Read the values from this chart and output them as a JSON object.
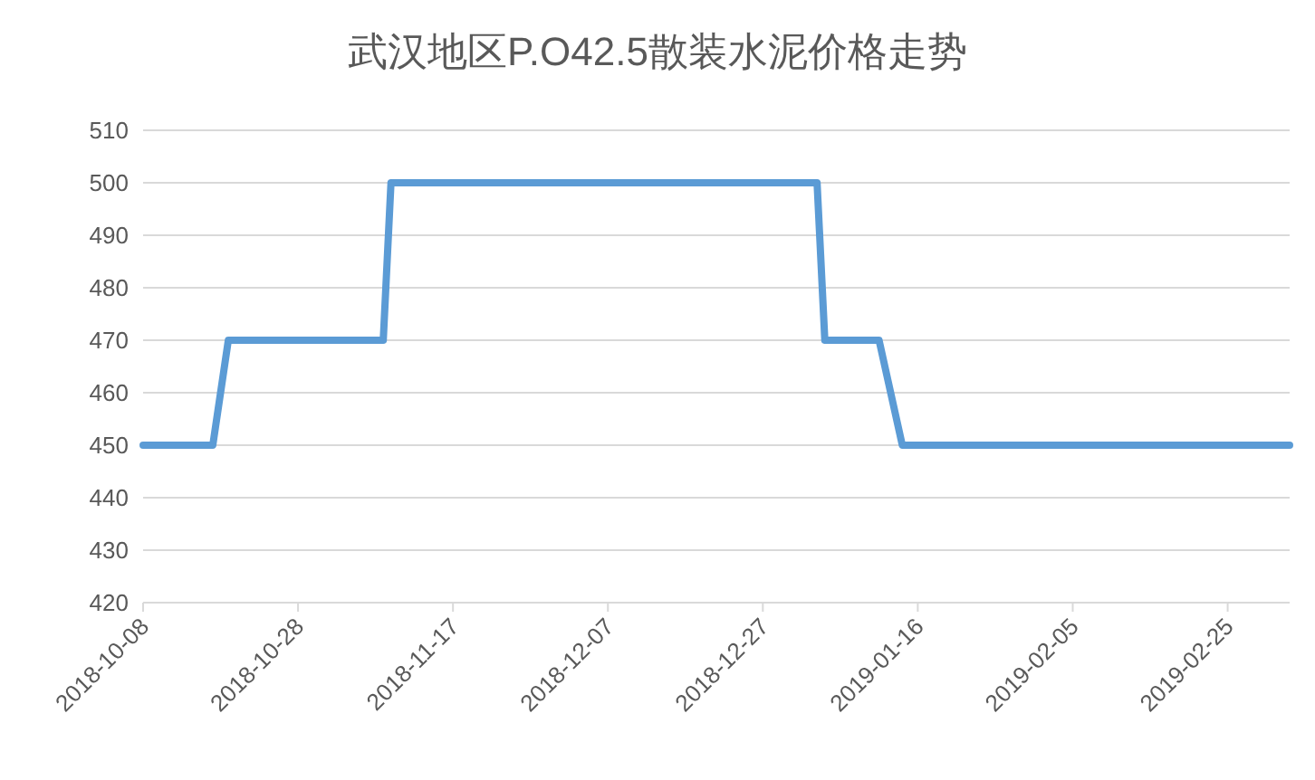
{
  "chart_data": {
    "type": "line",
    "title": "武汉地区P.O42.5散装水泥价格走势",
    "x": [
      "2018-10-08",
      "2018-10-17",
      "2018-10-19",
      "2018-11-08",
      "2018-11-09",
      "2019-01-03",
      "2019-01-04",
      "2019-01-11",
      "2019-01-14",
      "2019-03-05"
    ],
    "series": [
      {
        "color": "#5b9bd5",
        "values": [
          450,
          450,
          470,
          470,
          500,
          500,
          470,
          470,
          450,
          450
        ]
      }
    ],
    "xlim": [
      "2018-10-08",
      "2019-03-05"
    ],
    "xticks": [
      "2018-10-08",
      "2018-10-28",
      "2018-11-17",
      "2018-12-07",
      "2018-12-27",
      "2019-01-16",
      "2019-02-05",
      "2019-02-25"
    ],
    "ylim": [
      420,
      510
    ],
    "yticks": [
      420,
      430,
      440,
      450,
      460,
      470,
      480,
      490,
      500,
      510
    ],
    "grid": "y",
    "marker": "none",
    "line_style": "solid"
  }
}
